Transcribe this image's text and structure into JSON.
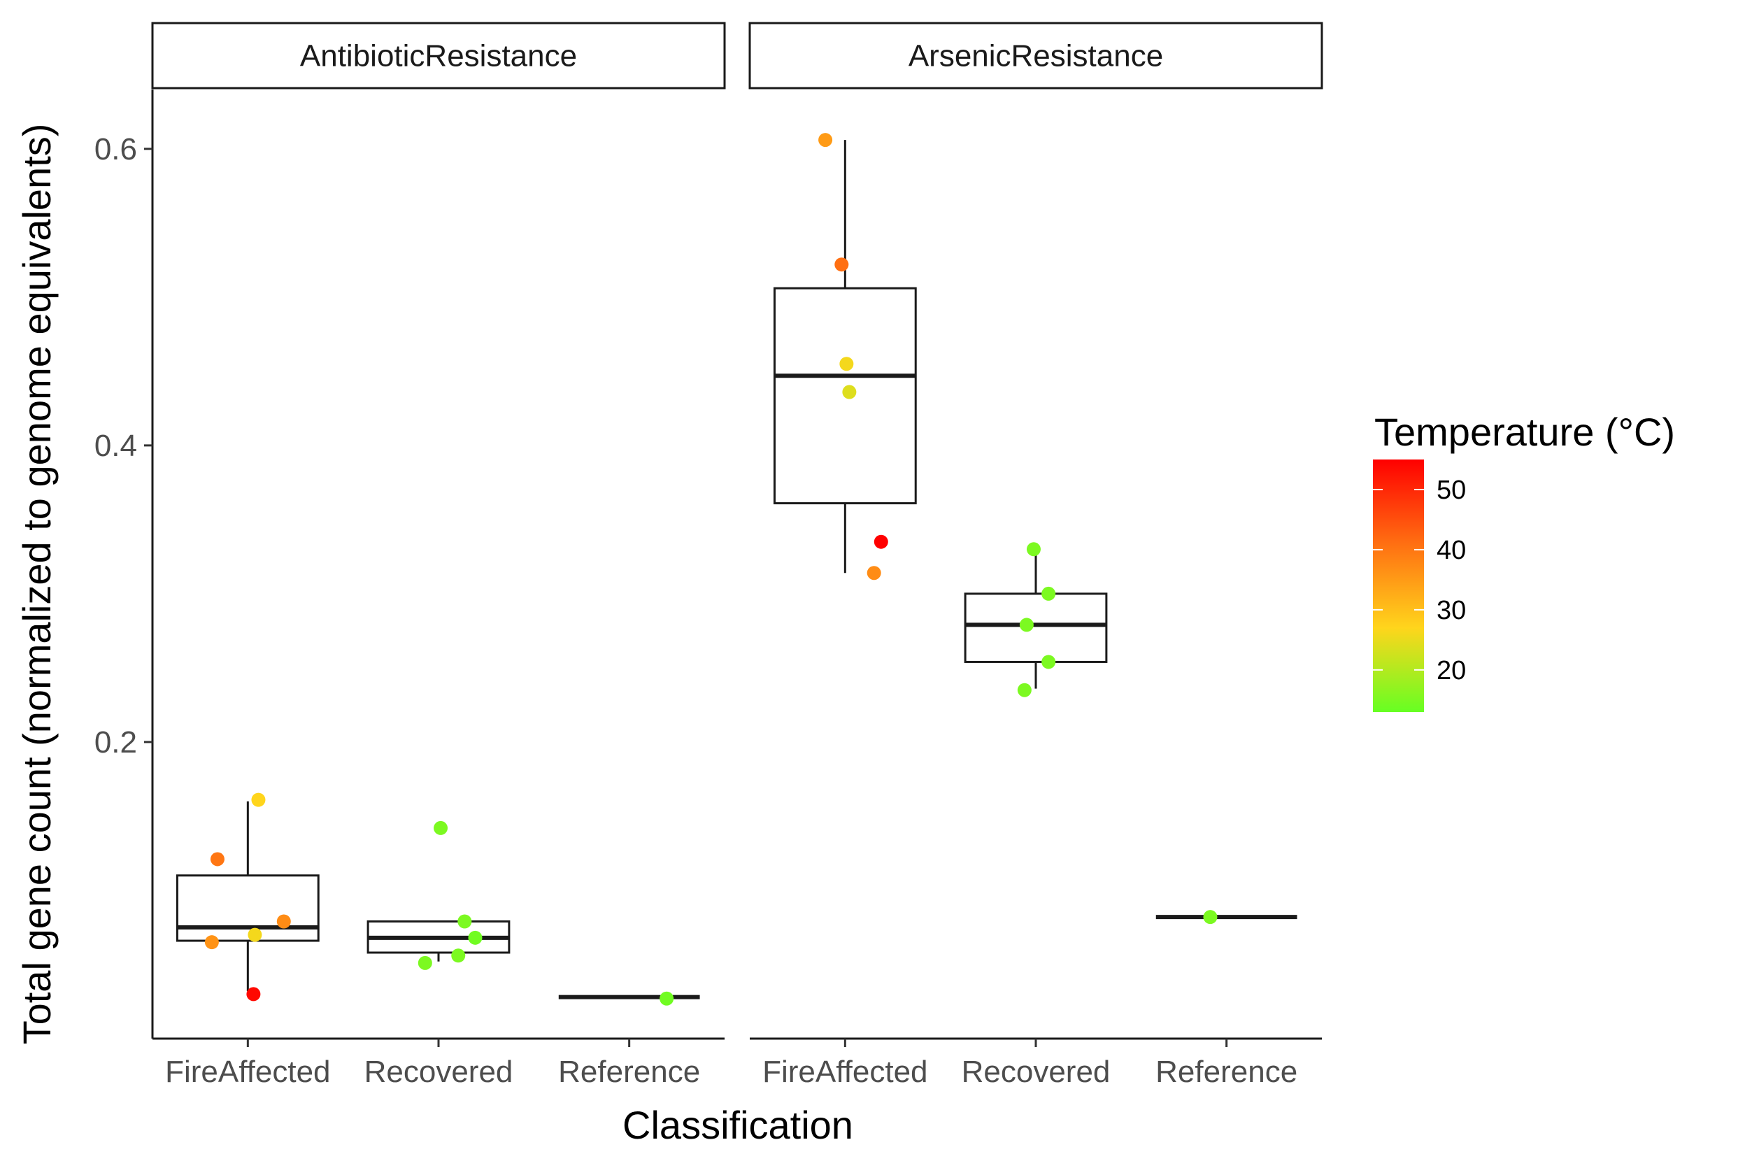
{
  "chart_data": {
    "type": "boxplot",
    "xlabel": "Classification",
    "ylabel": "Total gene count (normalized to genome equivalents)",
    "categories": [
      "FireAffected",
      "Recovered",
      "Reference"
    ],
    "ylim": [
      0.0,
      0.64
    ],
    "yticks": [
      0.2,
      0.4,
      0.6
    ],
    "ytick_labels": [
      "0.2",
      "0.4",
      "0.6"
    ],
    "grid": false,
    "facets": [
      {
        "label": "AntibioticResistance",
        "boxes": [
          {
            "category": "FireAffected",
            "q1": 0.066,
            "median": 0.075,
            "q3": 0.11,
            "whisker_low": 0.032,
            "whisker_high": 0.16
          },
          {
            "category": "Recovered",
            "q1": 0.058,
            "median": 0.068,
            "q3": 0.079,
            "whisker_low": 0.052,
            "whisker_high": 0.079
          },
          {
            "category": "Reference",
            "q1": 0.028,
            "median": 0.028,
            "q3": 0.028,
            "whisker_low": 0.028,
            "whisker_high": 0.028
          }
        ],
        "points": [
          {
            "category": "FireAffected",
            "y": 0.161,
            "temp": 27,
            "jitter": 0.15
          },
          {
            "category": "FireAffected",
            "y": 0.121,
            "temp": 40,
            "jitter": -0.43
          },
          {
            "category": "FireAffected",
            "y": 0.079,
            "temp": 37,
            "jitter": 0.51
          },
          {
            "category": "FireAffected",
            "y": 0.07,
            "temp": 26,
            "jitter": 0.1
          },
          {
            "category": "FireAffected",
            "y": 0.065,
            "temp": 36,
            "jitter": -0.51
          },
          {
            "category": "FireAffected",
            "y": 0.03,
            "temp": 54,
            "jitter": 0.08
          },
          {
            "category": "Recovered",
            "y": 0.142,
            "temp": 15,
            "jitter": 0.03
          },
          {
            "category": "Recovered",
            "y": 0.079,
            "temp": 15,
            "jitter": 0.37
          },
          {
            "category": "Recovered",
            "y": 0.068,
            "temp": 14,
            "jitter": 0.52
          },
          {
            "category": "Recovered",
            "y": 0.056,
            "temp": 15,
            "jitter": 0.28
          },
          {
            "category": "Recovered",
            "y": 0.051,
            "temp": 15,
            "jitter": -0.19
          },
          {
            "category": "Reference",
            "y": 0.027,
            "temp": 14,
            "jitter": 0.53
          }
        ]
      },
      {
        "label": "ArsenicResistance",
        "boxes": [
          {
            "category": "FireAffected",
            "q1": 0.361,
            "median": 0.447,
            "q3": 0.506,
            "whisker_low": 0.314,
            "whisker_high": 0.606
          },
          {
            "category": "Recovered",
            "q1": 0.254,
            "median": 0.279,
            "q3": 0.3,
            "whisker_low": 0.236,
            "whisker_high": 0.329
          },
          {
            "category": "Reference",
            "q1": 0.082,
            "median": 0.082,
            "q3": 0.082,
            "whisker_low": 0.082,
            "whisker_high": 0.082
          }
        ],
        "points": [
          {
            "category": "FireAffected",
            "y": 0.606,
            "temp": 35,
            "jitter": -0.28
          },
          {
            "category": "FireAffected",
            "y": 0.522,
            "temp": 41,
            "jitter": -0.05
          },
          {
            "category": "FireAffected",
            "y": 0.455,
            "temp": 26,
            "jitter": 0.02
          },
          {
            "category": "FireAffected",
            "y": 0.436,
            "temp": 24,
            "jitter": 0.06
          },
          {
            "category": "FireAffected",
            "y": 0.335,
            "temp": 55,
            "jitter": 0.51
          },
          {
            "category": "FireAffected",
            "y": 0.314,
            "temp": 37,
            "jitter": 0.41
          },
          {
            "category": "Recovered",
            "y": 0.33,
            "temp": 15,
            "jitter": -0.03
          },
          {
            "category": "Recovered",
            "y": 0.3,
            "temp": 15,
            "jitter": 0.18
          },
          {
            "category": "Recovered",
            "y": 0.279,
            "temp": 15,
            "jitter": -0.13
          },
          {
            "category": "Recovered",
            "y": 0.254,
            "temp": 15,
            "jitter": 0.18
          },
          {
            "category": "Recovered",
            "y": 0.235,
            "temp": 15,
            "jitter": -0.16
          },
          {
            "category": "Reference",
            "y": 0.082,
            "temp": 15,
            "jitter": -0.23
          }
        ]
      }
    ],
    "legend": {
      "title": "Temperature (°C)",
      "placement": "right",
      "range": [
        13,
        55
      ],
      "ticks": [
        20,
        30,
        40,
        50
      ],
      "tick_labels": [
        "20",
        "30",
        "40",
        "50"
      ],
      "colors": [
        "#66ff22",
        "#ffd51c",
        "#ff6f12",
        "#ff0000"
      ]
    }
  }
}
